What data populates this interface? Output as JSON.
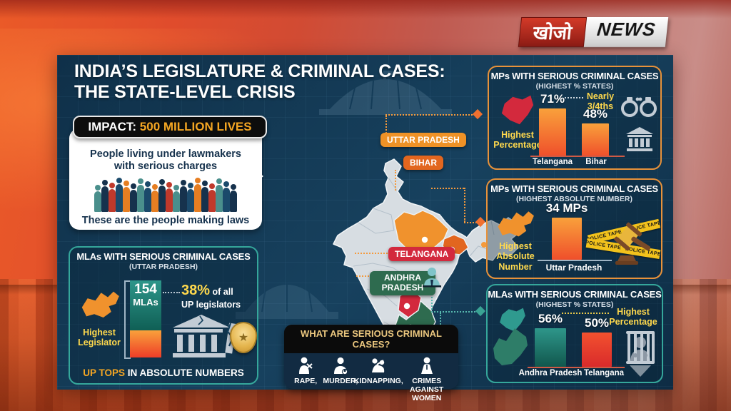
{
  "brand": {
    "name_hindi": "खोजो",
    "name_en": "NEWS"
  },
  "title": {
    "line1": "INDIA’S LEGISLATURE & CRIMINAL CASES:",
    "line2": "THE STATE-LEVEL CRISIS"
  },
  "impact": {
    "label": "IMPACT:",
    "value": "500 MILLION LIVES",
    "line1": "People living under lawmakers",
    "line2": "with serious charges",
    "caption": "These are the people making laws",
    "crowd_colors": [
      "#4a8f8c",
      "#16324d",
      "#c0392b",
      "#1b4a6b",
      "#e67e22",
      "#16324d",
      "#4a8f8c",
      "#1b4a6b",
      "#e67e22",
      "#16324d",
      "#c0392b",
      "#4a8f8c",
      "#16324d",
      "#1b4a6b",
      "#e67e22",
      "#16324d",
      "#c0392b",
      "#4a8f8c",
      "#1b4a6b",
      "#16324d"
    ]
  },
  "map": {
    "labels": [
      {
        "text": "UTTAR PRADESH",
        "color": "#ef9226"
      },
      {
        "text": "BIHAR",
        "color": "#e2661f"
      },
      {
        "text": "TELANGANA",
        "color": "#d3293d"
      },
      {
        "text": "ANDHRA PRADESH",
        "color": "#2e6b4f"
      }
    ]
  },
  "panel_mla_up": {
    "title": "MLAs WITH SERIOUS CRIMINAL CASES",
    "subtitle": "(UTTAR PRADESH)",
    "bar_num": "154",
    "bar_unit": "MLAs",
    "pct": "38%",
    "pct_rest": " of all",
    "pct_rest2": "UP legislators",
    "side1": "Highest",
    "side2": "Legislator",
    "footer_hl": "UP TOPS",
    "footer_rest": " IN ABSOLUTE NUMBERS"
  },
  "panel_mp_pct": {
    "title": "MPs WITH SERIOUS CRIMINAL CASES",
    "subtitle": "(HIGHEST % STATES)",
    "side1": "Highest",
    "side2": "Percentage",
    "note1": "Nearly",
    "note2": "3/4ths",
    "bar1_value": "71%",
    "bar1_label": "Telangana",
    "bar2_value": "48%",
    "bar2_label": "Bihar"
  },
  "panel_mp_abs": {
    "title": "MPs WITH SERIOUS CRIMINAL CASES",
    "subtitle": "(HIGHEST ABSOLUTE NUMBER)",
    "side1": "Highest",
    "side2": "Absolute",
    "side3": "Number",
    "bar_value": "34 MPs",
    "bar_label": "Uttar Pradesh",
    "tape": "POLICE TAPE"
  },
  "panel_mla_pct": {
    "title": "MLAs WITH SERIOUS CRIMINAL CASES",
    "subtitle": "(HIGHEST % STATES)",
    "note1": "Highest",
    "note2": "Percentage",
    "bar1_value": "56%",
    "bar1_label": "Andhra Pradesh",
    "bar2_value": "50%",
    "bar2_label": "Telangana"
  },
  "panel_serious": {
    "title": "WHAT ARE SERIOUS CRIMINAL CASES?",
    "items": [
      {
        "label": "RAPE,"
      },
      {
        "label": "MURDER,"
      },
      {
        "label": "KIDNAPPING,"
      },
      {
        "label": "CRIMES AGAINST WOMEN"
      }
    ]
  },
  "chart_data": [
    {
      "type": "bar",
      "title": "MLAs with serious criminal cases (Uttar Pradesh)",
      "categories": [
        "Uttar Pradesh"
      ],
      "values": [
        154
      ],
      "unit": "MLAs",
      "note": "38% of all UP legislators",
      "highlight": "UP tops in absolute numbers"
    },
    {
      "type": "bar",
      "title": "MPs with serious criminal cases (highest % states)",
      "categories": [
        "Telangana",
        "Bihar"
      ],
      "values": [
        71,
        48
      ],
      "unit": "%",
      "annotation": "Nearly 3/4ths",
      "note": "Telangana highest percentage"
    },
    {
      "type": "bar",
      "title": "MPs with serious criminal cases (highest absolute number)",
      "categories": [
        "Uttar Pradesh"
      ],
      "values": [
        34
      ],
      "unit": "MPs",
      "note": "UP highest absolute number"
    },
    {
      "type": "bar",
      "title": "MLAs with serious criminal cases (highest % states)",
      "categories": [
        "Andhra Pradesh",
        "Telangana"
      ],
      "values": [
        56,
        50
      ],
      "unit": "%",
      "note": "Andhra Pradesh highest percentage"
    }
  ],
  "theme": {
    "accent_orange": "#f5a623",
    "accent_yellow": "#ffd94d",
    "teal": "#35a79b",
    "panel_navy": "#15354f",
    "badge_up": "#ef9226",
    "badge_bihar": "#e2661f",
    "badge_telangana": "#d3293d",
    "badge_andhra": "#2e6b4f"
  }
}
